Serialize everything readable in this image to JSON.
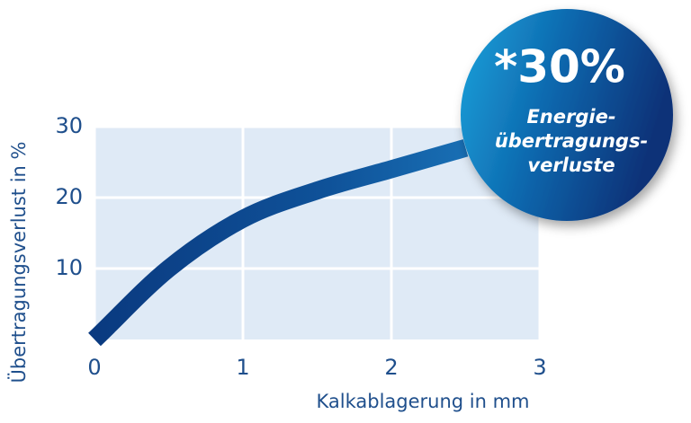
{
  "chart_data": {
    "type": "line",
    "x_label": "Kalkablagerung in mm",
    "y_label": "Übertragungsverlust in %",
    "x": [
      0,
      0.5,
      1,
      1.5,
      2,
      2.5
    ],
    "series": [
      {
        "color": "#0d4a94",
        "values": [
          0,
          10,
          17,
          21,
          24,
          27
        ]
      }
    ],
    "xlim": [
      0,
      3
    ],
    "xticks": [
      0,
      1,
      2,
      3
    ],
    "ylim": [
      0,
      30
    ],
    "yticks": [
      10,
      20,
      30
    ],
    "grid": true,
    "annotations": [
      "*30%",
      "Energie-",
      "übertragungs-",
      "verluste"
    ]
  }
}
